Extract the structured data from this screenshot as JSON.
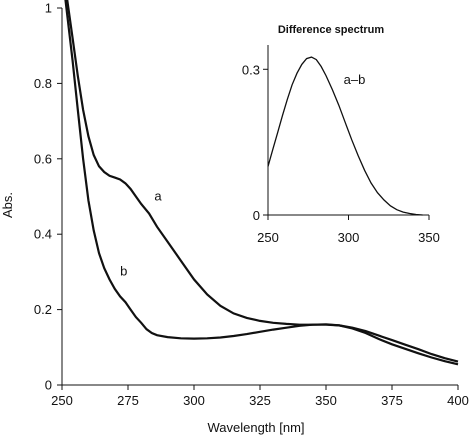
{
  "chart_data": [
    {
      "type": "line",
      "title": "",
      "xlabel": "Wavelength [nm]",
      "ylabel": "Abs.",
      "xlim": [
        250,
        400
      ],
      "ylim": [
        0,
        1
      ],
      "xticks": [
        "250",
        "275",
        "300",
        "325",
        "350",
        "375",
        "400"
      ],
      "yticks": [
        "0",
        "0.2",
        "0.4",
        "0.6",
        "0.8",
        "1"
      ],
      "grid": false,
      "legend": "none",
      "series": [
        {
          "name": "a",
          "x": [
            250,
            252,
            254,
            256,
            258,
            260,
            262,
            264,
            266,
            268,
            270,
            272,
            274,
            276,
            278,
            280,
            283,
            286,
            290,
            295,
            300,
            305,
            310,
            315,
            320,
            325,
            330,
            335,
            340,
            345,
            350,
            355,
            360,
            365,
            370,
            375,
            380,
            385,
            390,
            395,
            400
          ],
          "y": [
            1.12,
            1.02,
            0.92,
            0.82,
            0.73,
            0.66,
            0.61,
            0.58,
            0.565,
            0.555,
            0.55,
            0.545,
            0.535,
            0.52,
            0.5,
            0.48,
            0.455,
            0.42,
            0.38,
            0.33,
            0.28,
            0.24,
            0.21,
            0.19,
            0.178,
            0.17,
            0.165,
            0.162,
            0.16,
            0.16,
            0.16,
            0.158,
            0.15,
            0.138,
            0.122,
            0.108,
            0.096,
            0.084,
            0.073,
            0.063,
            0.055
          ]
        },
        {
          "name": "b",
          "x": [
            250,
            252,
            254,
            256,
            258,
            260,
            262,
            264,
            266,
            268,
            270,
            272,
            274,
            276,
            278,
            280,
            282,
            284,
            286,
            290,
            295,
            300,
            305,
            310,
            315,
            320,
            325,
            330,
            335,
            340,
            345,
            350,
            355,
            360,
            365,
            370,
            375,
            380,
            385,
            390,
            395,
            400
          ],
          "y": [
            1.1,
            0.98,
            0.86,
            0.73,
            0.6,
            0.49,
            0.41,
            0.35,
            0.31,
            0.28,
            0.255,
            0.235,
            0.22,
            0.2,
            0.18,
            0.165,
            0.148,
            0.138,
            0.132,
            0.127,
            0.124,
            0.123,
            0.124,
            0.126,
            0.13,
            0.135,
            0.141,
            0.147,
            0.152,
            0.157,
            0.16,
            0.161,
            0.158,
            0.152,
            0.143,
            0.131,
            0.119,
            0.107,
            0.095,
            0.082,
            0.071,
            0.062
          ]
        }
      ]
    },
    {
      "type": "line",
      "title": "Difference spectrum",
      "xlabel": "",
      "ylabel": "",
      "xlim": [
        250,
        350
      ],
      "ylim": [
        0,
        0.35
      ],
      "xticks": [
        "250",
        "300",
        "350"
      ],
      "yticks": [
        "0",
        "0.3"
      ],
      "grid": false,
      "legend": "none",
      "series": [
        {
          "name": "a–b",
          "x": [
            250,
            253,
            256,
            259,
            262,
            265,
            268,
            271,
            274,
            277,
            280,
            283,
            286,
            290,
            294,
            298,
            302,
            306,
            310,
            314,
            318,
            322,
            326,
            330,
            334,
            338,
            342,
            346
          ],
          "y": [
            0.1,
            0.135,
            0.17,
            0.205,
            0.238,
            0.268,
            0.292,
            0.31,
            0.322,
            0.325,
            0.32,
            0.306,
            0.287,
            0.258,
            0.226,
            0.19,
            0.155,
            0.122,
            0.092,
            0.066,
            0.046,
            0.031,
            0.019,
            0.011,
            0.006,
            0.003,
            0.001,
            0.0
          ]
        }
      ]
    }
  ]
}
